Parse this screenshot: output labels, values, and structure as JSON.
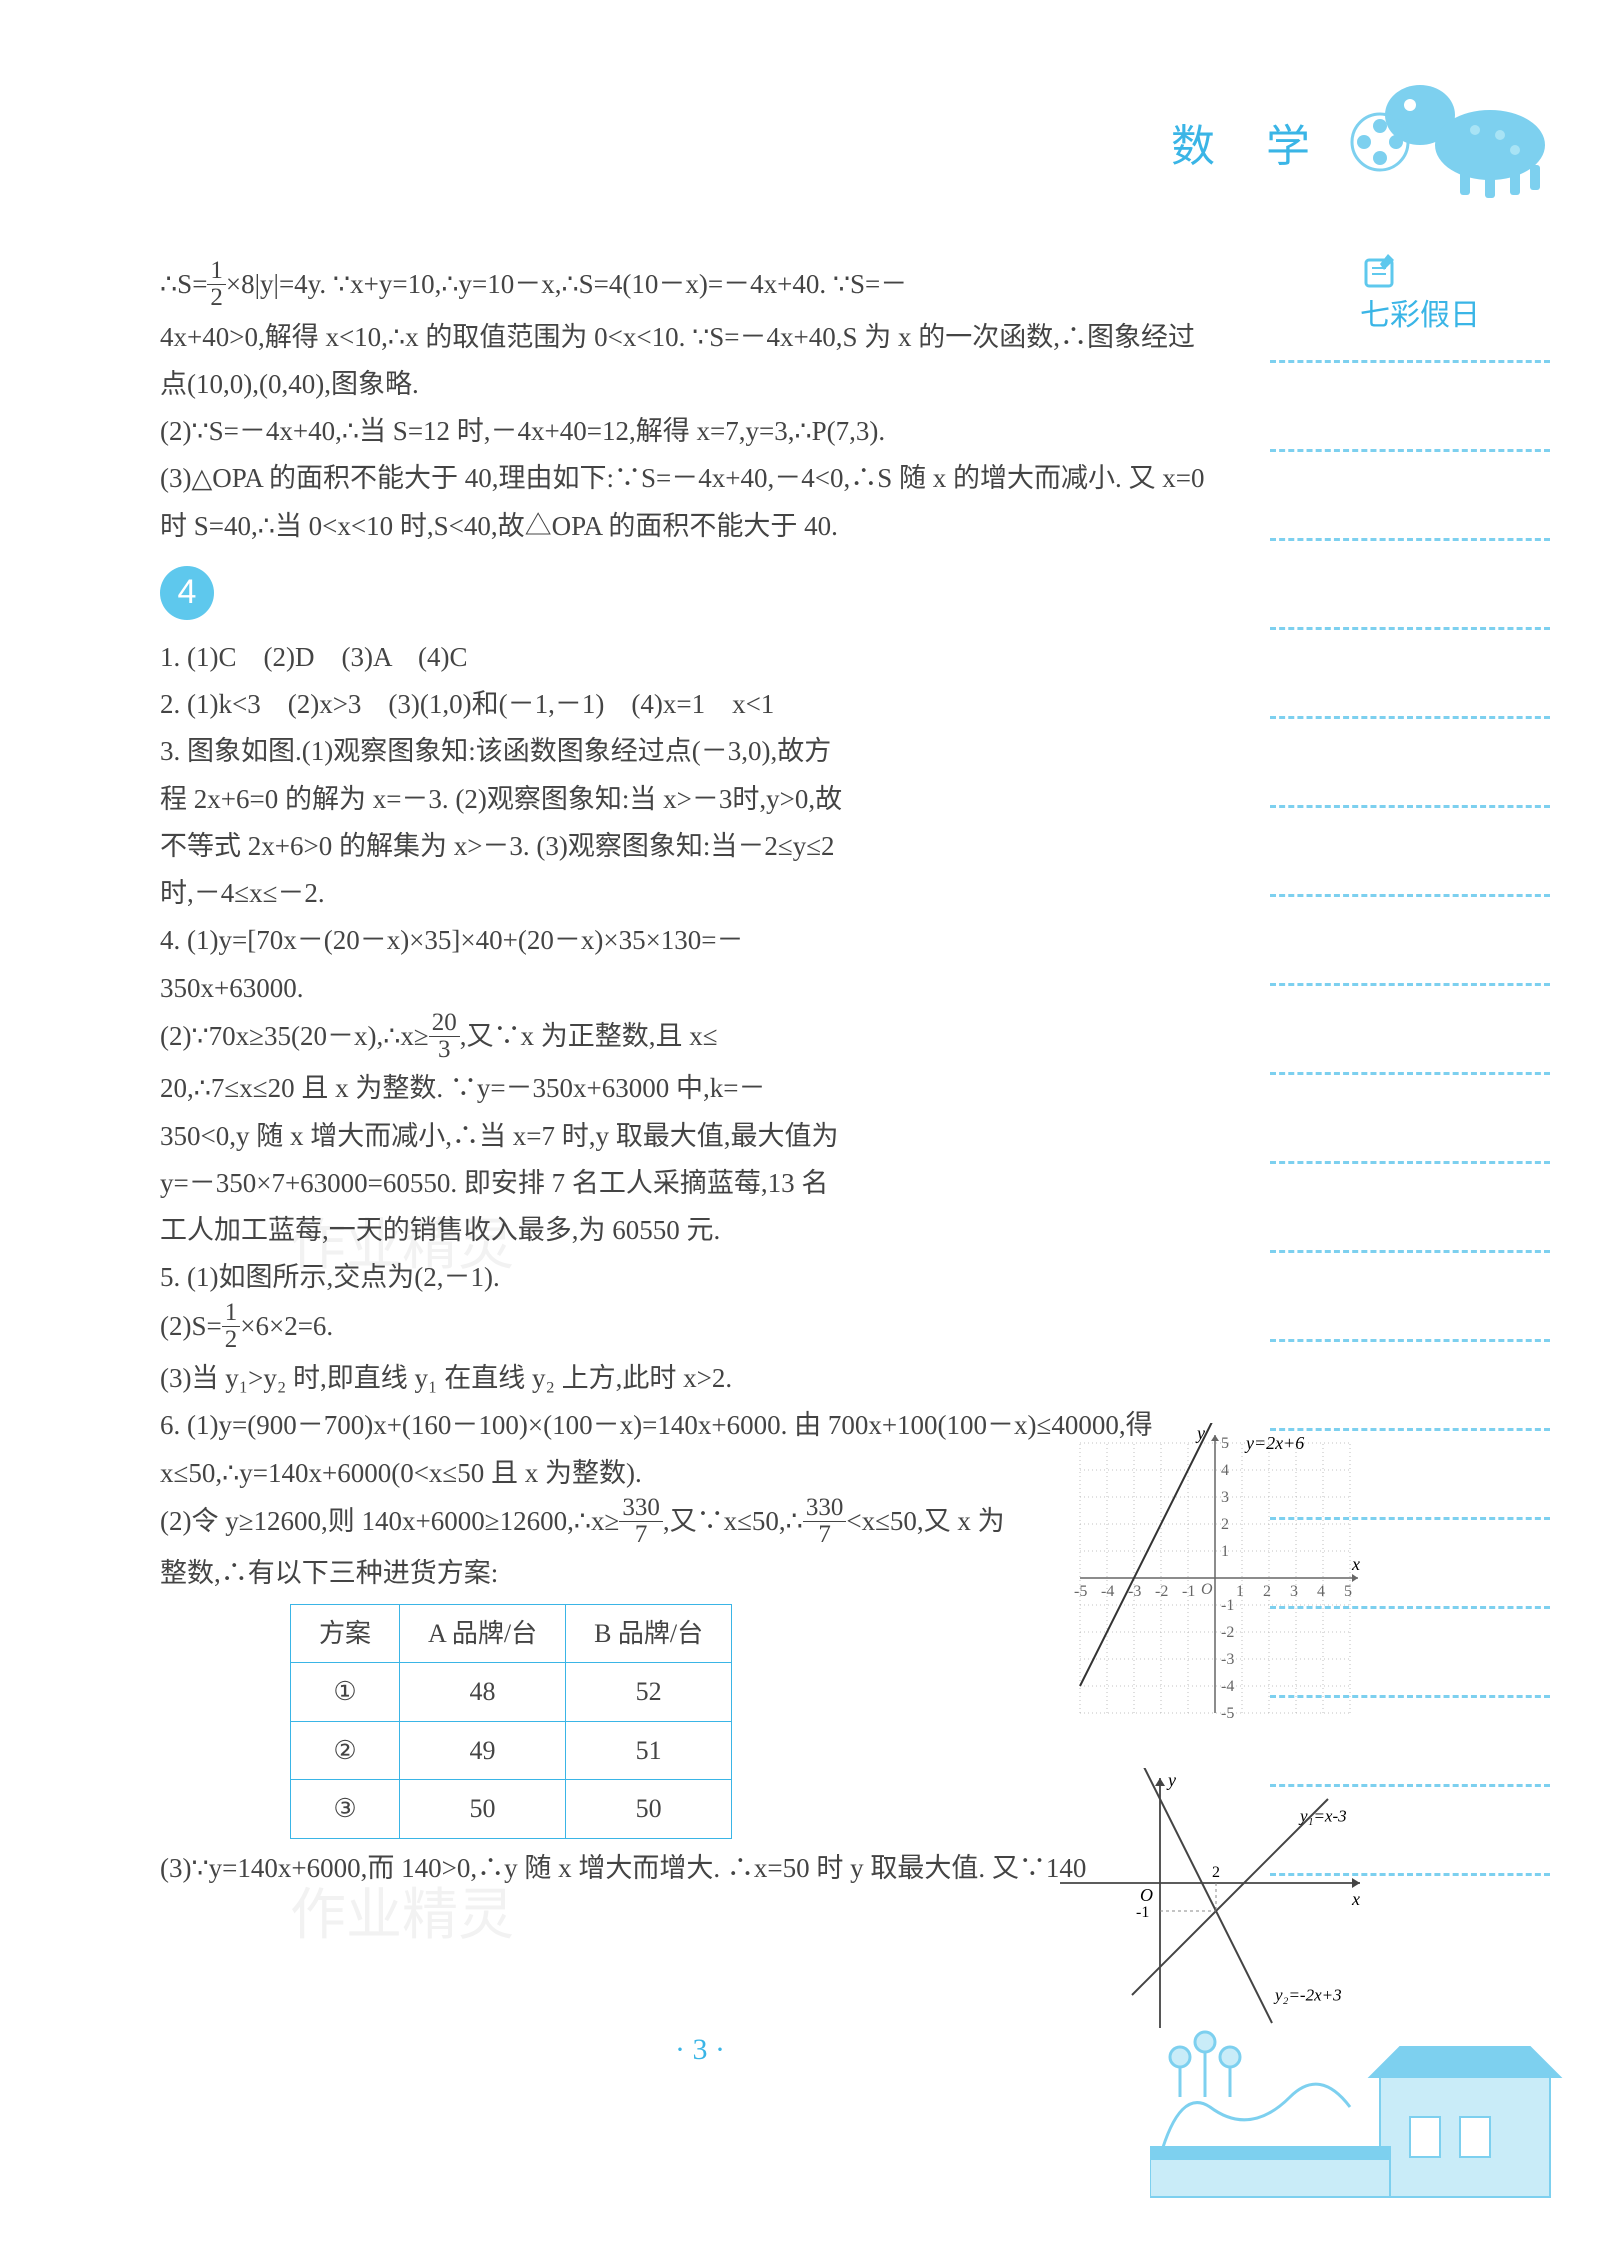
{
  "header": {
    "subject": "数 学",
    "side_label": "七彩假日"
  },
  "colors": {
    "accent": "#3ab5e6",
    "dash": "#7dd0ef",
    "text": "#444444",
    "bg": "#ffffff",
    "table_border": "#3ab5e6"
  },
  "page_number": "· 3 ·",
  "watermarks": [
    "作业精灵",
    "作业精灵"
  ],
  "section3_tail": {
    "p1a": "∴S=",
    "p1_frac_n": "1",
    "p1_frac_d": "2",
    "p1b": "×8|y|=4y. ∵x+y=10,∴y=10－x,∴S=4(10－x)=－4x+40. ∵S=－",
    "p2": "4x+40>0,解得 x<10,∴x 的取值范围为 0<x<10. ∵S=－4x+40,S 为 x 的一次函数,∴图象经过点(10,0),(0,40),图象略.",
    "p3": "(2)∵S=－4x+40,∴当 S=12 时,－4x+40=12,解得 x=7,y=3,∴P(7,3).",
    "p4": "(3)△OPA 的面积不能大于 40,理由如下:∵S=－4x+40,－4<0,∴S 随 x 的增大而减小. 又 x=0 时 S=40,∴当 0<x<10 时,S<40,故△OPA 的面积不能大于 40."
  },
  "section4": {
    "badge": "4",
    "q1": "1. (1)C　(2)D　(3)A　(4)C",
    "q2": "2. (1)k<3　(2)x>3　(3)(1,0)和(－1,－1)　(4)x=1　x<1",
    "q3": "3. 图象如图.(1)观察图象知:该函数图象经过点(－3,0),故方程 2x+6=0 的解为 x=－3. (2)观察图象知:当 x>－3时,y>0,故不等式 2x+6>0 的解集为 x>－3. (3)观察图象知:当－2≤y≤2 时,－4≤x≤－2.",
    "q4a": "4. (1)y=[70x－(20－x)×35]×40+(20－x)×35×130=－350x+63000.",
    "q4b_a": "(2)∵70x≥35(20－x),∴x≥",
    "q4b_frac_n": "20",
    "q4b_frac_d": "3",
    "q4b_b": ",又∵x 为正整数,且 x≤",
    "q4c": "20,∴7≤x≤20 且 x 为整数. ∵y=－350x+63000 中,k=－350<0,y 随 x 增大而减小,∴当 x=7 时,y 取最大值,最大值为 y=－350×7+63000=60550. 即安排 7 名工人采摘蓝莓,13 名工人加工蓝莓,一天的销售收入最多,为 60550 元.",
    "q5a": "5. (1)如图所示,交点为(2,－1).",
    "q5b_a": "(2)S=",
    "q5b_frac_n": "1",
    "q5b_frac_d": "2",
    "q5b_b": "×6×2=6.",
    "q5c": "(3)当 y₁>y₂ 时,即直线 y₁ 在直线 y₂ 上方,此时 x>2.",
    "q6a": "6. (1)y=(900－700)x+(160－100)×(100－x)=140x+6000. 由 700x+100(100－x)≤40000,得 x≤50,∴y=140x+6000(0<x≤50 且 x 为整数).",
    "q6b_a": "(2)令 y≥12600,则 140x+6000≥12600,∴x≥",
    "q6b_frac1_n": "330",
    "q6b_frac1_d": "7",
    "q6b_b": ",又∵x≤50,∴",
    "q6b_frac2_n": "330",
    "q6b_frac2_d": "7",
    "q6b_c": "<x≤50,又 x 为",
    "q6c": "整数,∴有以下三种进货方案:",
    "q6d": "(3)∵y=140x+6000,而 140>0,∴y 随 x 增大而增大. ∴x=50 时 y 取最大值. 又∵140"
  },
  "table": {
    "headers": [
      "方案",
      "A 品牌/台",
      "B 品牌/台"
    ],
    "rows": [
      [
        "①",
        "48",
        "52"
      ],
      [
        "②",
        "49",
        "51"
      ],
      [
        "③",
        "50",
        "50"
      ]
    ]
  },
  "chart1": {
    "type": "line",
    "eq_label": "y=2x+6",
    "xlim": [
      -5,
      5
    ],
    "ylim": [
      -5,
      5
    ],
    "xticks": [
      "-5",
      "-4",
      "-3",
      "-2",
      "-1",
      "O",
      "1",
      "2",
      "3",
      "4",
      "5"
    ],
    "yticks": [
      "-5",
      "-4",
      "-3",
      "-2",
      "-1",
      "1",
      "2",
      "3",
      "4",
      "5"
    ],
    "line_points": [
      [
        -5,
        -4
      ],
      [
        1,
        8
      ]
    ],
    "axis_color": "#666666",
    "grid_color": "#b0b0b0",
    "tick_fontsize": 16,
    "label_fontsize": 18
  },
  "chart2": {
    "type": "line",
    "lines": [
      {
        "label": "y₁=x-3",
        "points": [
          [
            -1,
            -4
          ],
          [
            6,
            3
          ]
        ],
        "color": "#444444"
      },
      {
        "label": "y₂=-2x+3",
        "points": [
          [
            -1,
            5
          ],
          [
            4,
            -5
          ]
        ],
        "color": "#444444"
      }
    ],
    "axis_labels": {
      "x": "x",
      "y": "y",
      "origin": "O"
    },
    "marked_x": "2",
    "marked_y": "-1",
    "axis_color": "#444444",
    "label_fontsize": 18
  },
  "side_line_count": 18
}
